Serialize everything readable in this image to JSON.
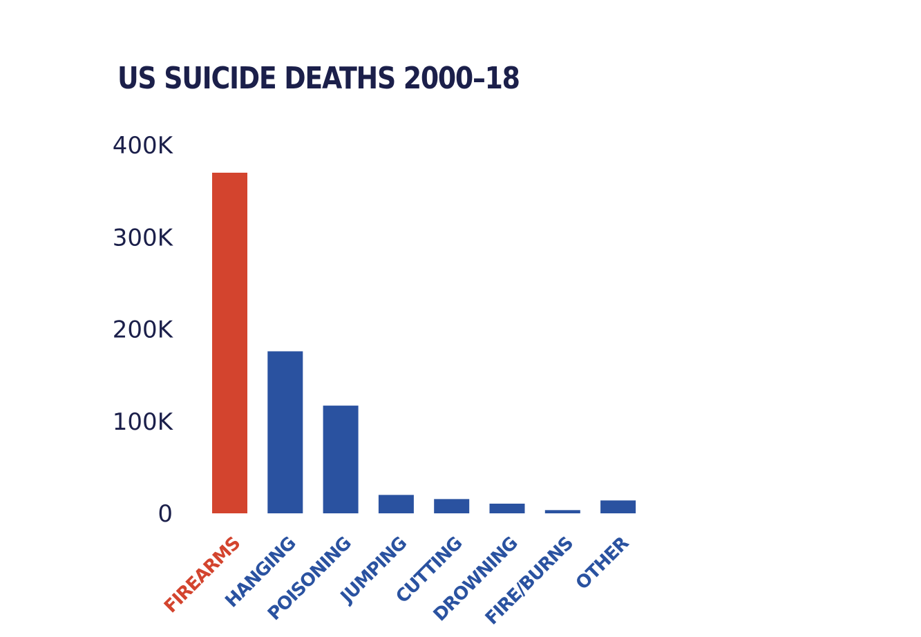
{
  "chart_data": {
    "type": "bar",
    "title": "US SUICIDE DEATHS 2000–18",
    "categories": [
      "FIREARMS",
      "HANGING",
      "POISONING",
      "JUMPING",
      "CUTTING",
      "DROWNING",
      "FIRE/BURNS",
      "OTHER"
    ],
    "values": [
      370000,
      176000,
      117000,
      20000,
      15500,
      10500,
      3500,
      14000
    ],
    "highlight_category": "FIREARMS",
    "ylim": [
      0,
      400000
    ],
    "y_ticks": [
      0,
      100000,
      200000,
      300000,
      400000
    ],
    "y_tick_labels": [
      "0",
      "100K",
      "200K",
      "300K",
      "400K"
    ],
    "xlabel": "",
    "ylabel": "",
    "grid": false,
    "legend": "none"
  },
  "colors": {
    "highlight": "#d3442e",
    "bar": "#2a52a0",
    "axis_text": "#1b1f4a",
    "title": "#1b1f4a"
  }
}
